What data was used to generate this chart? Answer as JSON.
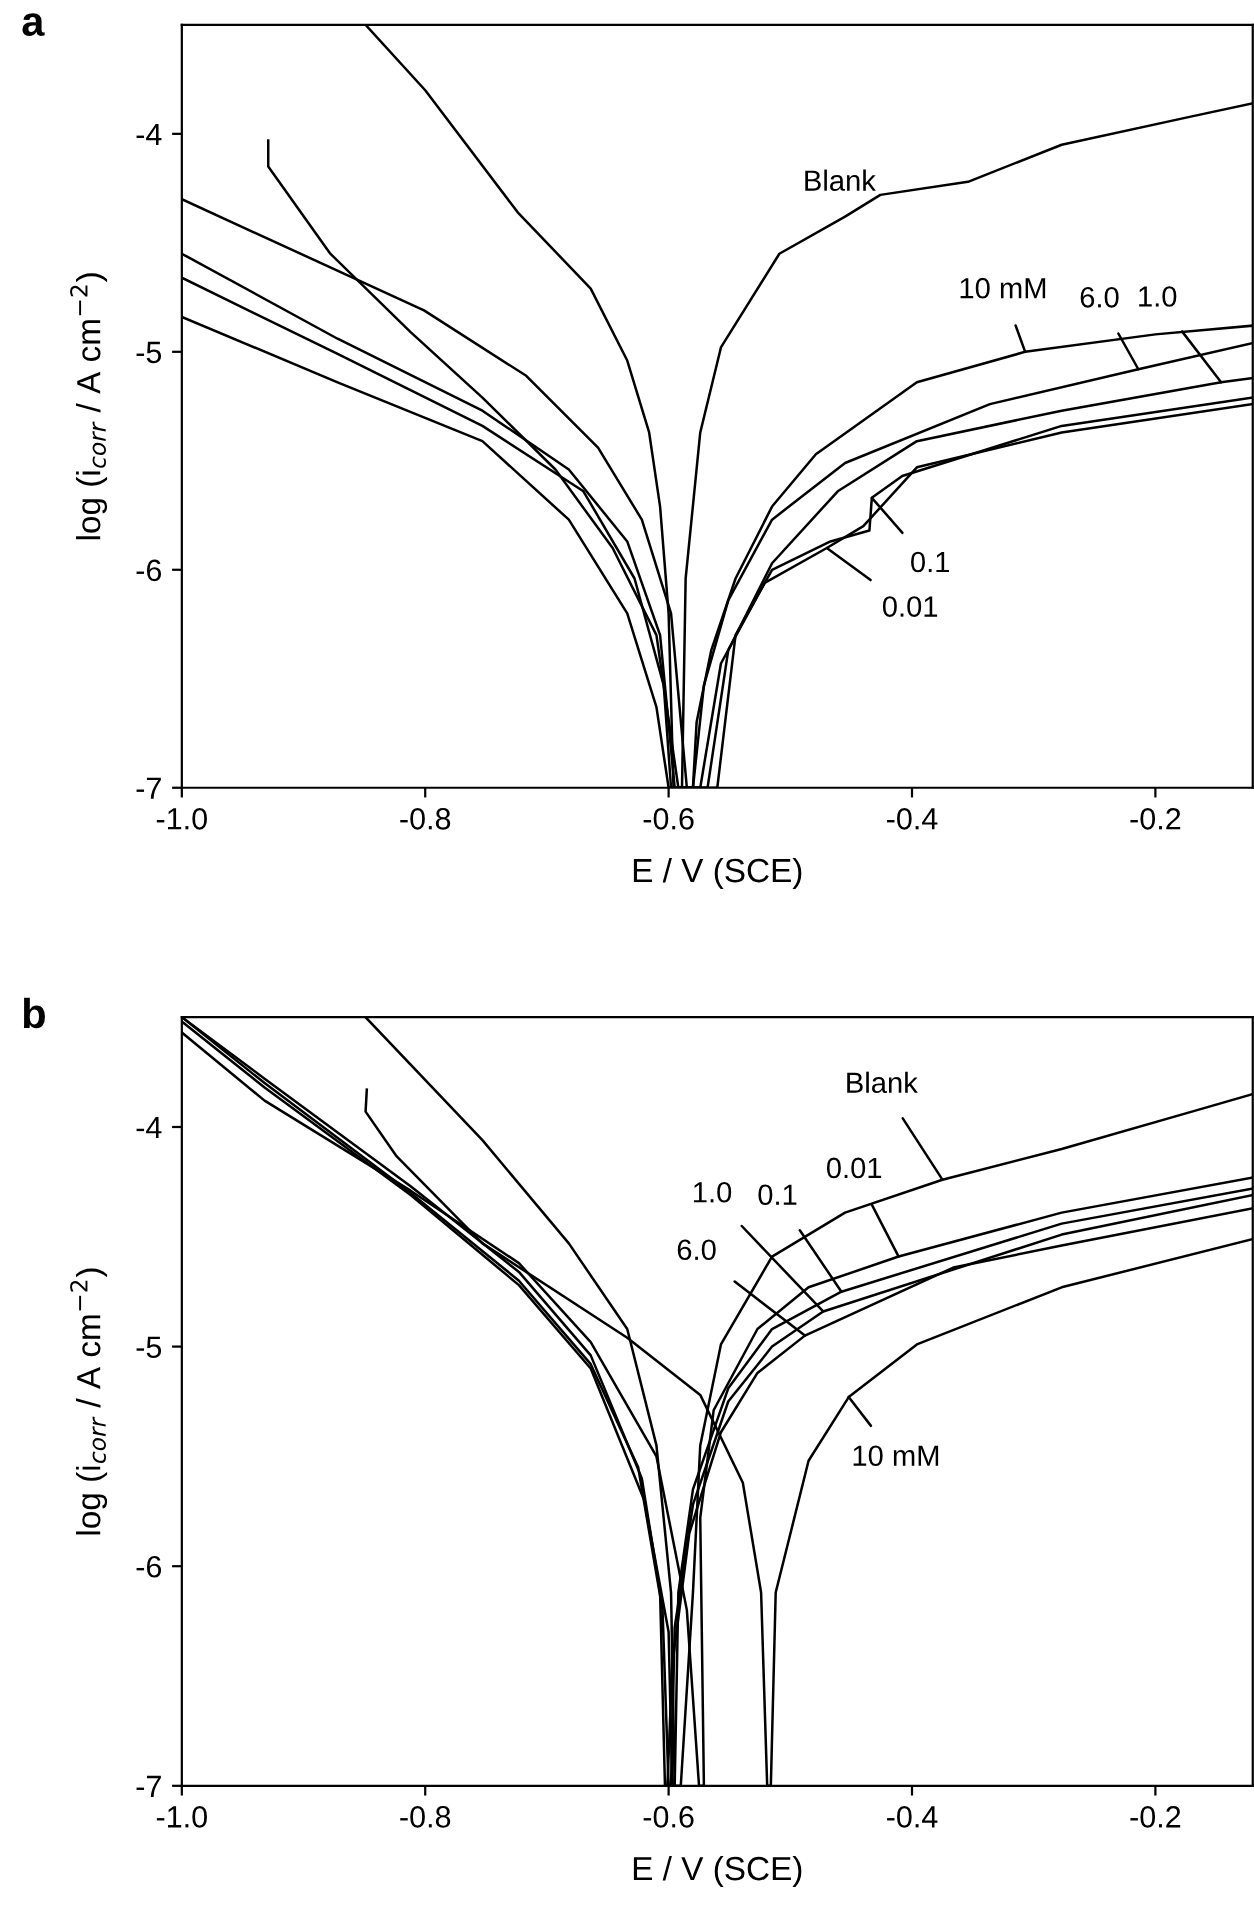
{
  "chart_data": [
    {
      "type": "line",
      "title": "a",
      "xlabel": "E / V (SCE)",
      "ylabel": "log (i$_{corr}$ / A cm$^{−2}$)",
      "xlim": [
        -1.0,
        -0.12
      ],
      "ylim": [
        -7,
        -3.5
      ],
      "xticks": [
        {
          "value": -1.0,
          "label": "-1.0"
        },
        -0.8,
        -0.6,
        -0.4,
        -0.2
      ],
      "yticks": [
        -7,
        -6,
        -5,
        -4
      ],
      "grid": false,
      "legend": false,
      "marker": "none",
      "line_style": "solid",
      "series": [
        {
          "color": "#000000",
          "x": [
            -0.849,
            -0.8,
            -0.724,
            -0.664,
            -0.634,
            -0.616,
            -0.607,
            -0.6,
            -0.596,
            -0.589,
            -0.586,
            -0.574,
            -0.557,
            -0.509,
            -0.455,
            -0.426,
            -0.354,
            -0.277,
            -0.17,
            -0.12
          ],
          "values": [
            -3.5,
            -3.8,
            -4.36,
            -4.71,
            -5.04,
            -5.37,
            -5.71,
            -6.2,
            -7,
            -7,
            -6.04,
            -5.37,
            -4.98,
            -4.55,
            -4.38,
            -4.28,
            -4.22,
            -4.05,
            -3.92,
            -3.86
          ]
        },
        {
          "color": "#000000",
          "x": [
            -1.0,
            -0.801,
            -0.717,
            -0.658,
            -0.622,
            -0.598,
            -0.585,
            -0.58,
            -0.577,
            -0.565,
            -0.545,
            -0.515,
            -0.479,
            -0.396,
            -0.307,
            -0.2,
            -0.12
          ],
          "values": [
            -4.3,
            -4.81,
            -5.11,
            -5.44,
            -5.77,
            -6.2,
            -7,
            -7,
            -6.7,
            -6.37,
            -6.04,
            -5.71,
            -5.47,
            -5.14,
            -5.0,
            -4.92,
            -4.88
          ]
        },
        {
          "color": "#000000",
          "x": [
            -0.929,
            -0.929,
            -0.878,
            -0.812,
            -0.753,
            -0.693,
            -0.646,
            -0.61,
            -0.592,
            -0.58,
            -0.571,
            -0.551,
            -0.515,
            -0.455,
            -0.336,
            -0.214,
            -0.12
          ],
          "values": [
            -4.03,
            -4.15,
            -4.55,
            -4.91,
            -5.21,
            -5.54,
            -5.9,
            -6.3,
            -7,
            -7,
            -6.53,
            -6.14,
            -5.77,
            -5.51,
            -5.24,
            -5.08,
            -4.96
          ]
        },
        {
          "color": "#000000",
          "x": [
            -1.0,
            -0.872,
            -0.753,
            -0.682,
            -0.634,
            -0.607,
            -0.595,
            -0.568,
            -0.551,
            -0.515,
            -0.461,
            -0.396,
            -0.277,
            -0.146,
            -0.12
          ],
          "values": [
            -4.55,
            -4.94,
            -5.27,
            -5.54,
            -5.87,
            -6.3,
            -7,
            -7,
            -6.37,
            -5.97,
            -5.64,
            -5.41,
            -5.27,
            -5.14,
            -5.12
          ]
        },
        {
          "color": "#000000",
          "x": [
            -1.0,
            -0.872,
            -0.753,
            -0.67,
            -0.628,
            -0.604,
            -0.598,
            -0.56,
            -0.545,
            -0.515,
            -0.467,
            -0.435,
            -0.433,
            -0.408,
            -0.277,
            -0.12
          ],
          "values": [
            -4.66,
            -5.01,
            -5.34,
            -5.64,
            -6.04,
            -6.53,
            -7,
            -7,
            -6.3,
            -6.0,
            -5.87,
            -5.82,
            -5.67,
            -5.57,
            -5.34,
            -5.21
          ]
        },
        {
          "color": "#000000",
          "x": [
            -1.0,
            -0.872,
            -0.753,
            -0.682,
            -0.634,
            -0.61,
            -0.6,
            -0.574,
            -0.557,
            -0.521,
            -0.47,
            -0.44,
            -0.396,
            -0.277,
            -0.12
          ],
          "values": [
            -4.84,
            -5.14,
            -5.41,
            -5.77,
            -6.2,
            -6.63,
            -7,
            -7,
            -6.43,
            -6.06,
            -5.9,
            -5.8,
            -5.53,
            -5.37,
            -5.24
          ]
        }
      ],
      "annotations": [
        {
          "text": "Blank",
          "x": -0.43,
          "y": -4.29
        },
        {
          "text": "10 mM",
          "x": -0.307,
          "y": -5.0
        },
        {
          "text": "6.0",
          "x": -0.214,
          "y": -5.08
        },
        {
          "text": "1.0",
          "x": -0.146,
          "y": -5.14
        },
        {
          "text": "0.1",
          "x": -0.433,
          "y": -5.67
        },
        {
          "text": "0.01",
          "x": -0.47,
          "y": -5.9
        }
      ]
    },
    {
      "type": "line",
      "title": "b",
      "xlabel": "E / V (SCE)",
      "ylabel": "log (i$_{corr}$ / A cm$^{−2}$)",
      "xlim": [
        -1.0,
        -0.12
      ],
      "ylim": [
        -7,
        -3.5
      ],
      "xticks": [
        {
          "value": -1.0,
          "label": "-1.0"
        },
        -0.8,
        -0.6,
        -0.4,
        -0.2
      ],
      "yticks": [
        -7,
        -6,
        -5,
        -4
      ],
      "grid": false,
      "legend": false,
      "marker": "none",
      "line_style": "solid",
      "series": [
        {
          "color": "#000000",
          "x": [
            -0.849,
            -0.753,
            -0.682,
            -0.634,
            -0.61,
            -0.598,
            -0.595,
            -0.59,
            -0.58,
            -0.574,
            -0.557,
            -0.515,
            -0.455,
            -0.375,
            -0.277,
            -0.17,
            -0.12
          ],
          "values": [
            -3.5,
            -4.06,
            -4.53,
            -4.92,
            -5.45,
            -6.12,
            -7,
            -7,
            -6.12,
            -5.45,
            -4.99,
            -4.59,
            -4.39,
            -4.24,
            -4.1,
            -3.93,
            -3.85
          ]
        },
        {
          "color": "#000000",
          "x": [
            -0.848,
            -0.849,
            -0.824,
            -0.753,
            -0.634,
            -0.574,
            -0.539,
            -0.524,
            -0.519,
            -0.516,
            -0.512,
            -0.485,
            -0.452,
            -0.396,
            -0.277,
            -0.12
          ],
          "values": [
            -3.83,
            -3.93,
            -4.13,
            -4.53,
            -4.96,
            -5.22,
            -5.62,
            -6.12,
            -7,
            -7,
            -6.12,
            -5.52,
            -5.23,
            -4.99,
            -4.73,
            -4.51
          ]
        },
        {
          "color": "#000000",
          "x": [
            -1.0,
            -0.932,
            -0.812,
            -0.723,
            -0.664,
            -0.622,
            -0.607,
            -0.603,
            -0.601,
            -0.597,
            -0.583,
            -0.557,
            -0.527,
            -0.488,
            -0.366,
            -0.277,
            -0.12
          ],
          "values": [
            -3.5,
            -3.78,
            -4.27,
            -4.66,
            -5.04,
            -5.6,
            -6.12,
            -7,
            -7,
            -6.45,
            -5.85,
            -5.39,
            -5.12,
            -4.95,
            -4.64,
            -4.54,
            -4.37
          ]
        },
        {
          "color": "#000000",
          "x": [
            -1.0,
            -0.932,
            -0.812,
            -0.723,
            -0.664,
            -0.625,
            -0.605,
            -0.6,
            -0.598,
            -0.595,
            -0.58,
            -0.551,
            -0.515,
            -0.473,
            -0.277,
            -0.12
          ],
          "values": [
            -3.5,
            -3.8,
            -4.3,
            -4.7,
            -5.08,
            -5.55,
            -6.2,
            -7,
            -7,
            -6.28,
            -5.72,
            -5.25,
            -5.0,
            -4.84,
            -4.49,
            -4.31
          ]
        },
        {
          "color": "#000000",
          "x": [
            -1.0,
            -0.932,
            -0.812,
            -0.723,
            -0.664,
            -0.62,
            -0.6,
            -0.597,
            -0.595,
            -0.592,
            -0.58,
            -0.551,
            -0.515,
            -0.458,
            -0.277,
            -0.12
          ],
          "values": [
            -3.52,
            -3.82,
            -4.31,
            -4.72,
            -5.1,
            -5.7,
            -6.3,
            -7,
            -7,
            -6.12,
            -5.65,
            -5.19,
            -4.92,
            -4.75,
            -4.44,
            -4.28
          ]
        },
        {
          "color": "#000000",
          "x": [
            -1.0,
            -0.932,
            -0.812,
            -0.723,
            -0.664,
            -0.61,
            -0.585,
            -0.575,
            -0.571,
            -0.574,
            -0.563,
            -0.527,
            -0.485,
            -0.411,
            -0.277,
            -0.12
          ],
          "values": [
            -3.57,
            -3.88,
            -4.29,
            -4.62,
            -4.98,
            -5.5,
            -6.2,
            -7,
            -7,
            -5.78,
            -5.29,
            -4.92,
            -4.73,
            -4.59,
            -4.39,
            -4.23
          ]
        }
      ],
      "annotations": [
        {
          "text": "Blank",
          "x": -0.375,
          "y": -4.24
        },
        {
          "text": "0.01",
          "x": -0.411,
          "y": -4.59
        },
        {
          "text": "0.1",
          "x": -0.458,
          "y": -4.75
        },
        {
          "text": "1.0",
          "x": -0.473,
          "y": -4.84
        },
        {
          "text": "6.0",
          "x": -0.488,
          "y": -4.95
        },
        {
          "text": "10 mM",
          "x": -0.452,
          "y": -5.23
        }
      ]
    }
  ]
}
